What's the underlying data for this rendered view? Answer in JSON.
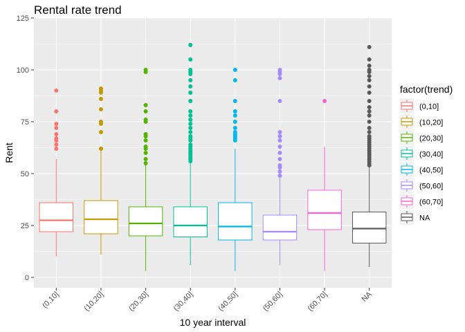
{
  "chart_data": {
    "type": "boxplot",
    "title": "Rental rate trend",
    "xlabel": "10 year interval",
    "ylabel": "Rent",
    "ylim": [
      -5,
      125
    ],
    "yticks": [
      0,
      25,
      50,
      75,
      100,
      125
    ],
    "grid": true,
    "legend": {
      "title": "factor(trend)",
      "position": "right"
    },
    "categories": [
      "(0,10]",
      "(10,20]",
      "(20,30]",
      "(30,40]",
      "(40,50]",
      "(50,60]",
      "(60,70]",
      "NA"
    ],
    "colors": [
      "#F8766D",
      "#C49A00",
      "#53B400",
      "#00C094",
      "#00B6EB",
      "#A58AFF",
      "#FB61D7",
      "#595959"
    ],
    "series": [
      {
        "name": "(0,10]",
        "whisker_low": 10,
        "q1": 22,
        "median": 27.5,
        "q3": 36,
        "whisker_high": 57,
        "outliers": [
          62,
          64,
          66,
          67,
          69,
          72,
          74,
          80,
          90
        ]
      },
      {
        "name": "(10,20]",
        "whisker_low": 11,
        "q1": 21,
        "median": 28,
        "q3": 37,
        "whisker_high": 61,
        "outliers": [
          62,
          62,
          70,
          74,
          75,
          81,
          86,
          89,
          90,
          91
        ]
      },
      {
        "name": "(20,30]",
        "whisker_low": 3,
        "q1": 20,
        "median": 26,
        "q3": 34,
        "whisker_high": 54,
        "outliers": [
          55,
          57,
          60,
          62,
          63,
          66,
          68,
          69,
          75,
          76,
          80,
          83,
          99,
          100
        ]
      },
      {
        "name": "(30,40]",
        "whisker_low": 6,
        "q1": 19.5,
        "median": 25,
        "q3": 34,
        "whisker_high": 55,
        "outliers": [
          56,
          57,
          58,
          59,
          60,
          61,
          62,
          63,
          64,
          66,
          67,
          68,
          70,
          72,
          74,
          76,
          78,
          80,
          85,
          89,
          92,
          95,
          98,
          99,
          100,
          105,
          112
        ]
      },
      {
        "name": "(40,50]",
        "whisker_low": 3,
        "q1": 18,
        "median": 24.5,
        "q3": 36,
        "whisker_high": 62,
        "outliers": [
          66,
          67,
          68,
          69,
          70,
          72,
          75,
          78,
          80,
          85,
          95,
          100
        ]
      },
      {
        "name": "(50,60]",
        "whisker_low": 6,
        "q1": 18,
        "median": 22,
        "q3": 30,
        "whisker_high": 48,
        "outliers": [
          49,
          51,
          53,
          54,
          57,
          60,
          63,
          66,
          68,
          70,
          85,
          96,
          98,
          99,
          100
        ]
      },
      {
        "name": "(60,70]",
        "whisker_low": 3,
        "q1": 23,
        "median": 31,
        "q3": 42,
        "whisker_high": 63,
        "outliers": [
          85
        ]
      },
      {
        "name": "NA",
        "whisker_low": 5,
        "q1": 16.5,
        "median": 23.5,
        "q3": 31.5,
        "whisker_high": 53,
        "outliers": [
          54,
          55,
          56,
          57,
          58,
          59,
          60,
          61,
          62,
          63,
          64,
          65,
          66,
          67,
          68,
          70,
          72,
          75,
          78,
          80,
          82,
          85,
          89,
          92,
          95,
          97,
          99,
          100,
          102,
          105,
          111
        ]
      }
    ]
  }
}
